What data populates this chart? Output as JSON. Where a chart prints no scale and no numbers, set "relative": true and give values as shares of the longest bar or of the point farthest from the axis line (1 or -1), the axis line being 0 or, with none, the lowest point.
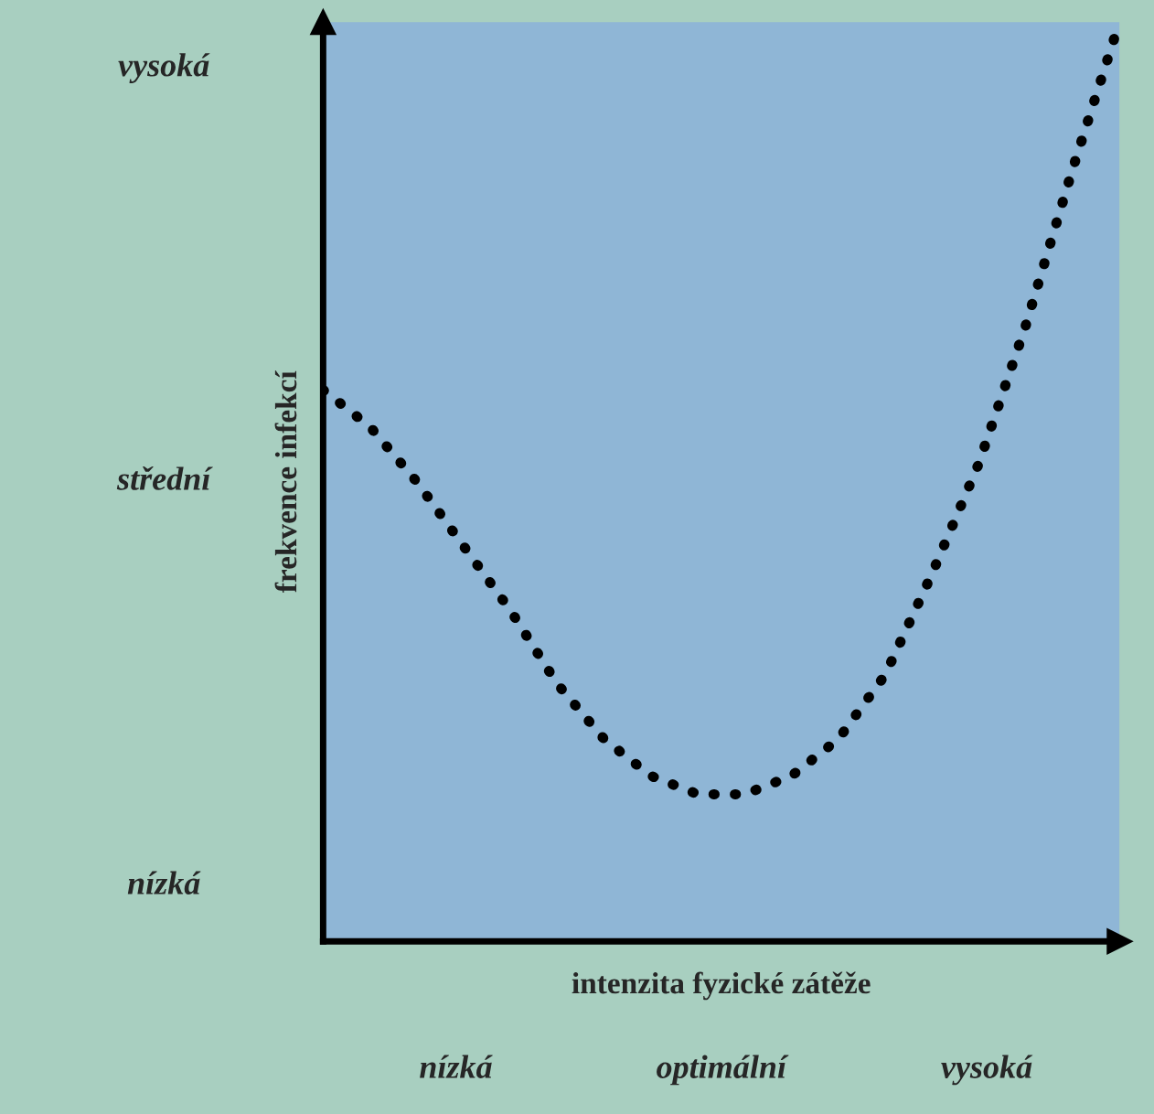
{
  "chart_data": {
    "type": "line",
    "relative": true,
    "xlabel": "intenzita fyzické zátěže",
    "ylabel": "frekvence infekcí",
    "categories": [
      null,
      null,
      null,
      null,
      null,
      null,
      null,
      null,
      null,
      null,
      null,
      null,
      null,
      null,
      null,
      null,
      null,
      null
    ],
    "series": [
      {
        "color": "#000000",
        "values": [
          0.6,
          0.56,
          0.5,
          0.43,
          0.36,
          0.28,
          0.22,
          0.18,
          0.16,
          0.16,
          0.18,
          0.22,
          0.29,
          0.4,
          0.52,
          0.67,
          0.84,
          1.0
        ]
      }
    ],
    "line_style": "dotted",
    "tick_labels": false,
    "annotations": [
      "vysoká",
      "střední",
      "nízká",
      "nízká",
      "optimální",
      "vysoká"
    ]
  }
}
